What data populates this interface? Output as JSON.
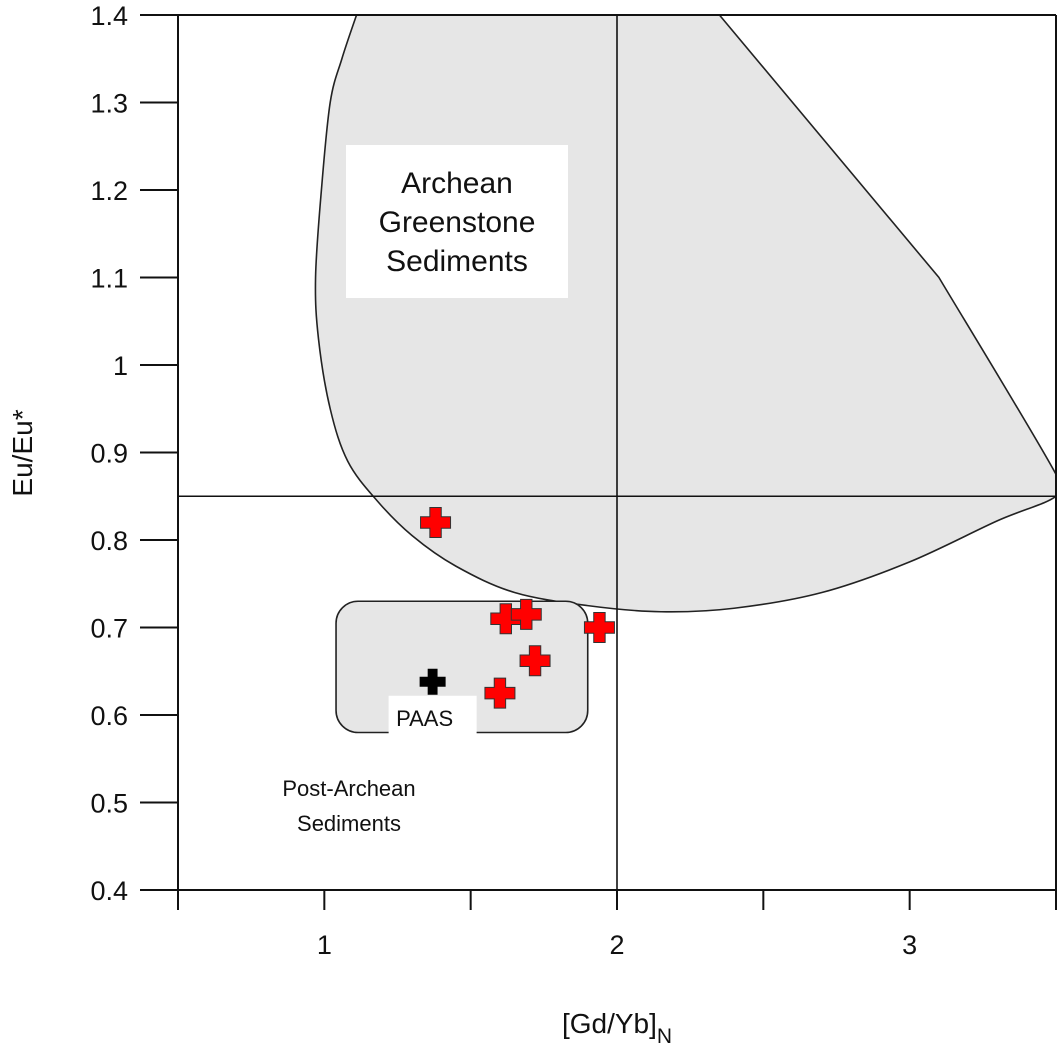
{
  "chart_data": {
    "type": "scatter",
    "xlabel": "[Gd/Yb]",
    "xlabel_subscript": "N",
    "ylabel": "Eu/Eu*",
    "xlim": [
      0.5,
      3.5
    ],
    "ylim": [
      0.4,
      1.4
    ],
    "x_ticks": [
      "1",
      "2",
      "3"
    ],
    "y_ticks": [
      "0.4",
      "0.5",
      "0.6",
      "0.7",
      "0.8",
      "0.9",
      "1",
      "1.1",
      "1.2",
      "1.3",
      "1.4"
    ],
    "reference_lines": {
      "x": 2.0,
      "y": 0.85
    },
    "regions": {
      "archean": {
        "label": [
          "Archean",
          "Greenstone",
          "Sediments"
        ],
        "fill": "#e6e6e6",
        "boundary": [
          [
            1.11,
            1.4
          ],
          [
            1.06,
            1.35
          ],
          [
            1.02,
            1.3
          ],
          [
            0.99,
            1.2
          ],
          [
            0.97,
            1.1
          ],
          [
            0.98,
            1.03
          ],
          [
            1.02,
            0.95
          ],
          [
            1.08,
            0.89
          ],
          [
            1.18,
            0.845
          ],
          [
            1.3,
            0.805
          ],
          [
            1.45,
            0.77
          ],
          [
            1.65,
            0.74
          ],
          [
            1.9,
            0.725
          ],
          [
            2.15,
            0.718
          ],
          [
            2.4,
            0.722
          ],
          [
            2.7,
            0.74
          ],
          [
            3.0,
            0.775
          ],
          [
            3.3,
            0.822
          ],
          [
            3.5,
            0.85
          ],
          [
            3.5,
            0.875
          ],
          [
            3.1,
            1.1
          ],
          [
            2.35,
            1.4
          ]
        ]
      },
      "paas_box": {
        "x": [
          1.04,
          1.9
        ],
        "y": [
          0.58,
          0.73
        ],
        "fill": "#e6e6e6"
      },
      "post_archean": {
        "label": [
          "Post-Archean",
          "Sediments"
        ]
      }
    },
    "series": [
      {
        "marker": "plus",
        "color": "#ff0000",
        "points": [
          {
            "x": 1.38,
            "y": 0.82
          },
          {
            "x": 1.62,
            "y": 0.71
          },
          {
            "x": 1.69,
            "y": 0.715
          },
          {
            "x": 1.94,
            "y": 0.7
          },
          {
            "x": 1.72,
            "y": 0.662
          },
          {
            "x": 1.6,
            "y": 0.625
          }
        ]
      },
      {
        "name": "PAAS",
        "marker": "plus",
        "color": "#000000",
        "points": [
          {
            "x": 1.37,
            "y": 0.638
          }
        ]
      }
    ]
  }
}
